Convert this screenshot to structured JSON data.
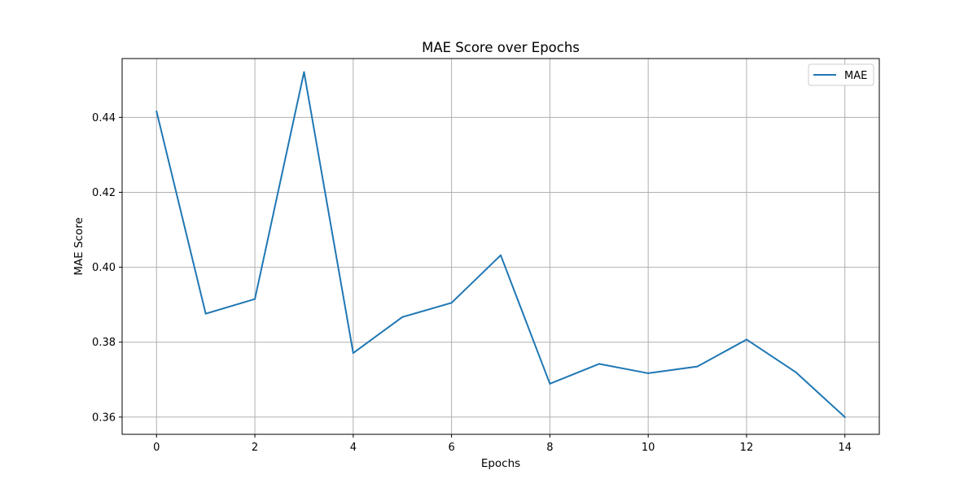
{
  "chart_data": {
    "type": "line",
    "title": "MAE Score over Epochs",
    "xlabel": "Epochs",
    "ylabel": "MAE Score",
    "x": [
      0,
      1,
      2,
      3,
      4,
      5,
      6,
      7,
      8,
      9,
      10,
      11,
      12,
      13,
      14
    ],
    "series": [
      {
        "name": "MAE",
        "color": "#1f77b4",
        "values": [
          0.4416,
          0.3876,
          0.3915,
          0.4521,
          0.3771,
          0.3867,
          0.3905,
          0.4032,
          0.3689,
          0.3742,
          0.3717,
          0.3735,
          0.3807,
          0.372,
          0.36
        ]
      }
    ],
    "xlim": [
      -0.7,
      14.7
    ],
    "ylim": [
      0.3554,
      0.4557
    ],
    "xticks": [
      0,
      2,
      4,
      6,
      8,
      10,
      12,
      14
    ],
    "xtick_labels": [
      "0",
      "2",
      "4",
      "6",
      "8",
      "10",
      "12",
      "14"
    ],
    "yticks": [
      0.36,
      0.38,
      0.4,
      0.42,
      0.44
    ],
    "ytick_labels": [
      "0.36",
      "0.38",
      "0.40",
      "0.42",
      "0.44"
    ],
    "grid": true,
    "legend_position": "top-right"
  }
}
